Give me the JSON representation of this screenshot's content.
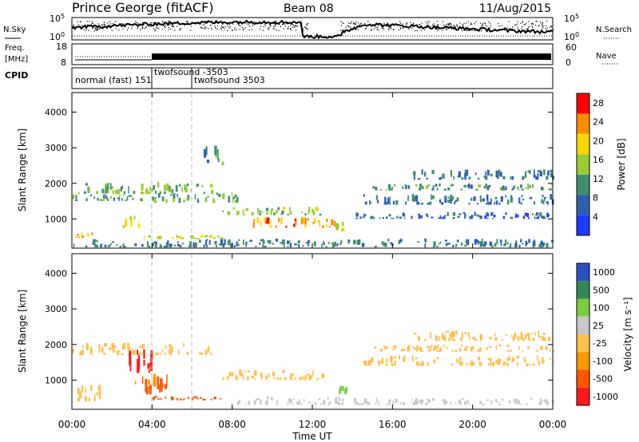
{
  "header": {
    "station": "Prince George (fitACF)",
    "beam": "Beam 08",
    "date": "11/Aug/2015"
  },
  "nsky_panel": {
    "left_label": "N.Sky",
    "right_label": "N.Search",
    "left_ticks": [
      {
        "base": "10",
        "exp": "5"
      },
      {
        "base": "10",
        "exp": "0"
      }
    ],
    "right_ticks": [
      {
        "base": "10",
        "exp": "5"
      },
      {
        "base": "10",
        "exp": "0"
      }
    ]
  },
  "freq_panel": {
    "left_label_line1": "Freq.",
    "left_label_line2": "[MHz]",
    "right_label": "Nave",
    "left_ticks": [
      "18",
      "8"
    ],
    "right_ticks": [
      "60",
      "0"
    ]
  },
  "cpid_panel": {
    "label": "CPID",
    "modes": [
      "normal (fast) 151",
      "twofsound -3503",
      "twofsound 3503"
    ]
  },
  "time_axis": {
    "label": "Time UT",
    "ticks": [
      "00:00",
      "04:00",
      "08:00",
      "12:00",
      "16:00",
      "20:00",
      "00:00"
    ]
  },
  "range_axis": {
    "label": "Slant Range [km]",
    "ticks": [
      "1000",
      "2000",
      "3000",
      "4000"
    ]
  },
  "power_colorbar": {
    "label": "Power [dB]",
    "ticks": [
      "4",
      "8",
      "12",
      "16",
      "20",
      "24",
      "28"
    ],
    "colors": [
      "#1e3cff",
      "#2f5fb0",
      "#3f8f6f",
      "#9acd32",
      "#ffd700",
      "#ff8c00",
      "#ff0000"
    ]
  },
  "velocity_colorbar": {
    "label": "Velocity [m s⁻¹]",
    "ticks": [
      "1000",
      "500",
      "100",
      "25",
      "-25",
      "-100",
      "-500",
      "-1000"
    ],
    "colors": [
      "#2a4fc0",
      "#2e8b57",
      "#7ccd3c",
      "#c8c8c8",
      "#ffc04d",
      "#ff9900",
      "#ff5500",
      "#ff1a1a"
    ]
  },
  "chart_data": [
    {
      "type": "heatmap",
      "title": "Power [dB]",
      "xlabel": "Time UT",
      "ylabel": "Slant Range [km]",
      "xlim": [
        0,
        24
      ],
      "ylim": [
        180,
        4550
      ],
      "x_unit": "hours UT",
      "bands": [
        {
          "t0": 0.0,
          "t1": 7.0,
          "r0": 1700,
          "r1": 2050,
          "value": 14
        },
        {
          "t0": 0.0,
          "t1": 3.5,
          "r0": 1500,
          "r1": 1700,
          "value": 12
        },
        {
          "t0": 0.0,
          "t1": 1.0,
          "r0": 470,
          "r1": 640,
          "value": 22
        },
        {
          "t0": 2.5,
          "t1": 3.5,
          "r0": 750,
          "r1": 1100,
          "value": 18
        },
        {
          "t0": 3.5,
          "t1": 7.5,
          "r0": 430,
          "r1": 560,
          "value": 18
        },
        {
          "t0": 4.0,
          "t1": 8.5,
          "r0": 1450,
          "r1": 1750,
          "value": 14
        },
        {
          "t0": 6.5,
          "t1": 7.5,
          "r0": 2500,
          "r1": 3100,
          "value": 12
        },
        {
          "t0": 7.5,
          "t1": 12.5,
          "r0": 1100,
          "r1": 1350,
          "value": 15
        },
        {
          "t0": 9.0,
          "t1": 13.0,
          "r0": 750,
          "r1": 1050,
          "value": 24
        },
        {
          "t0": 13.0,
          "t1": 13.5,
          "r0": 650,
          "r1": 950,
          "value": 20
        },
        {
          "t0": 14.5,
          "t1": 24.0,
          "r0": 1400,
          "r1": 1700,
          "value": 10
        },
        {
          "t0": 15.0,
          "t1": 24.0,
          "r0": 1800,
          "r1": 2000,
          "value": 12
        },
        {
          "t0": 17.0,
          "t1": 24.0,
          "r0": 2100,
          "r1": 2400,
          "value": 10
        },
        {
          "t0": 14.0,
          "t1": 24.0,
          "r0": 1000,
          "r1": 1200,
          "value": 8
        },
        {
          "t0": 0.0,
          "t1": 24.0,
          "r0": 200,
          "r1": 450,
          "value": 10
        }
      ]
    },
    {
      "type": "heatmap",
      "title": "Velocity [m s⁻¹]",
      "xlabel": "Time UT",
      "ylabel": "Slant Range [km]",
      "xlim": [
        0,
        24
      ],
      "ylim": [
        180,
        4550
      ],
      "x_unit": "hours UT",
      "bands": [
        {
          "t0": 0.0,
          "t1": 7.0,
          "r0": 1700,
          "r1": 2050,
          "value": 0
        },
        {
          "t0": 2.5,
          "t1": 4.0,
          "r0": 1200,
          "r1": 1900,
          "value": -700
        },
        {
          "t0": 3.0,
          "t1": 5.0,
          "r0": 600,
          "r1": 1200,
          "value": -200
        },
        {
          "t0": 4.0,
          "t1": 7.5,
          "r0": 430,
          "r1": 560,
          "value": -200
        },
        {
          "t0": 0.0,
          "t1": 1.5,
          "r0": 400,
          "r1": 900,
          "value": 0
        },
        {
          "t0": 7.5,
          "t1": 12.5,
          "r0": 1000,
          "r1": 1300,
          "value": 0
        },
        {
          "t0": 8.0,
          "t1": 13.5,
          "r0": 300,
          "r1": 550,
          "value": 60
        },
        {
          "t0": 13.3,
          "t1": 13.7,
          "r0": 600,
          "r1": 900,
          "value": 300
        },
        {
          "t0": 14.5,
          "t1": 24.0,
          "r0": 1400,
          "r1": 1700,
          "value": 0
        },
        {
          "t0": 15.0,
          "t1": 24.0,
          "r0": 1800,
          "r1": 2000,
          "value": 0
        },
        {
          "t0": 17.0,
          "t1": 24.0,
          "r0": 2100,
          "r1": 2400,
          "value": 0
        },
        {
          "t0": 14.0,
          "t1": 24.0,
          "r0": 300,
          "r1": 500,
          "value": 60
        }
      ]
    }
  ]
}
